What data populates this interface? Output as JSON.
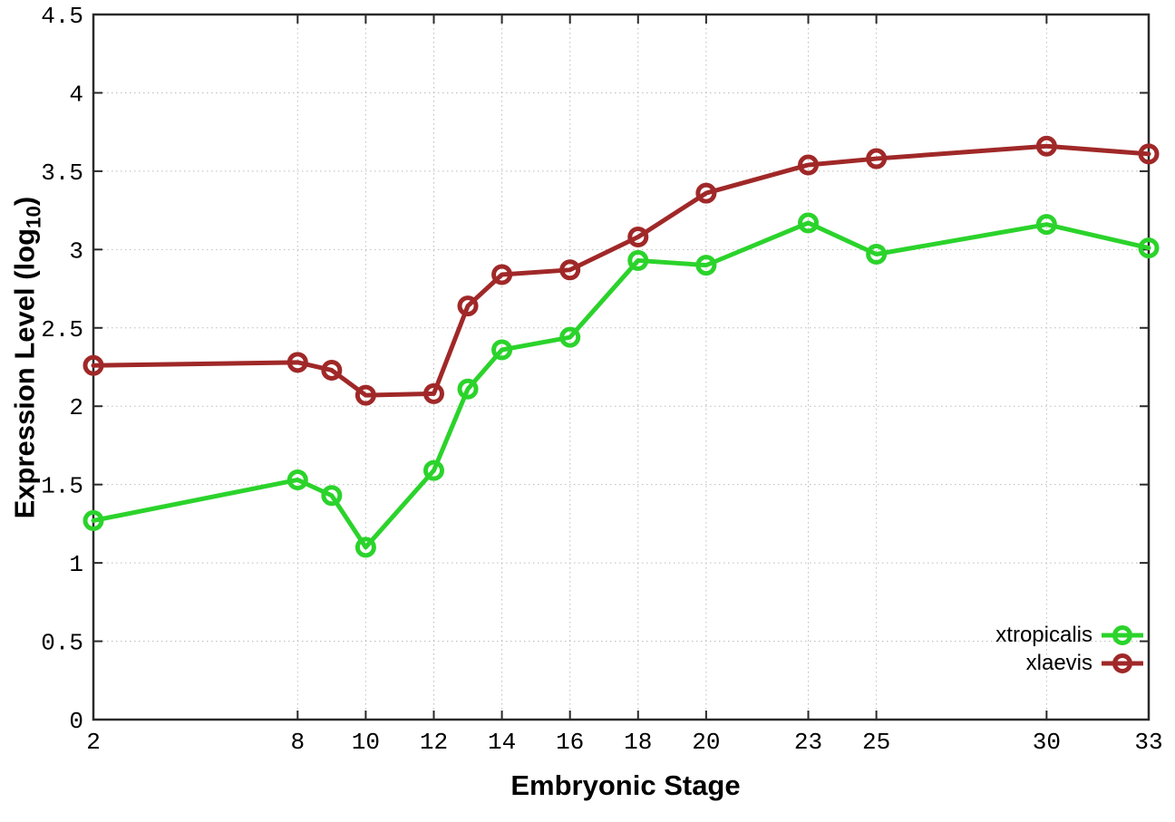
{
  "figure": {
    "background": "#ffffff",
    "xlabel": "Embryonic Stage",
    "ylabel_prefix": "Expression Level (log",
    "ylabel_sub": "10",
    "ylabel_suffix": ")"
  },
  "chart_data": {
    "type": "line",
    "title": "",
    "xlabel": "Embryonic Stage",
    "ylabel": "Expression Level (log10)",
    "x": [
      2,
      8,
      9,
      10,
      12,
      13,
      14,
      16,
      18,
      20,
      23,
      25,
      30,
      33
    ],
    "x_tick_values": [
      2,
      8,
      10,
      12,
      14,
      16,
      18,
      20,
      23,
      25,
      30,
      33
    ],
    "x_tick_labels": [
      "2",
      "8",
      "10",
      "12",
      "14",
      "16",
      "18",
      "20",
      "23",
      "25",
      "30",
      "33"
    ],
    "y_tick_values": [
      0,
      0.5,
      1,
      1.5,
      2,
      2.5,
      3,
      3.5,
      4,
      4.5
    ],
    "y_tick_labels": [
      "0",
      "0.5",
      "1",
      "1.5",
      "2",
      "2.5",
      "3",
      "3.5",
      "4",
      "4.5"
    ],
    "xlim": [
      2,
      33
    ],
    "ylim": [
      0,
      4.5
    ],
    "grid": true,
    "grid_style": "dotted",
    "legend_position": "bottom-right",
    "marker": "open-circle",
    "series": [
      {
        "name": "xtropicalis",
        "color": "#2bd32b",
        "values": [
          1.27,
          1.53,
          1.43,
          1.1,
          1.59,
          2.11,
          2.36,
          2.44,
          2.93,
          2.9,
          3.17,
          2.97,
          3.16,
          3.01
        ]
      },
      {
        "name": "xlaevis",
        "color": "#a02828",
        "values": [
          2.26,
          2.28,
          2.23,
          2.07,
          2.08,
          2.64,
          2.84,
          2.87,
          3.08,
          3.36,
          3.54,
          3.58,
          3.66,
          3.61
        ]
      }
    ],
    "colors": {
      "border": "#2a2a2a",
      "grid": "#bcbcbc",
      "text": "#000000"
    }
  }
}
